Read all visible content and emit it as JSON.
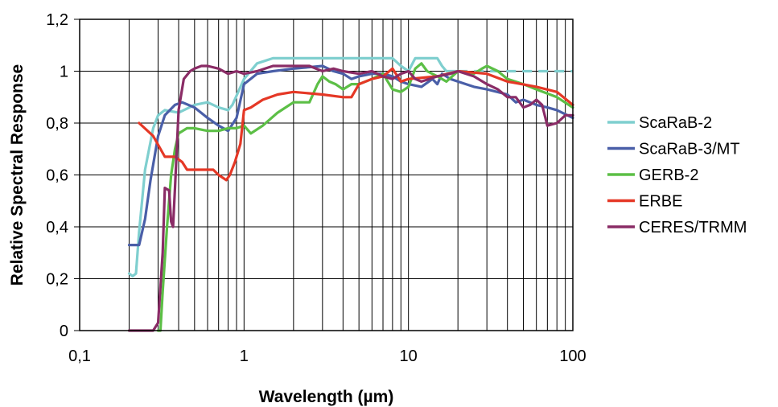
{
  "chart_data": {
    "type": "line",
    "title": "",
    "xlabel": "Wavelength (µm)",
    "ylabel": "Relative Spectral Response",
    "x_scale": "log",
    "xlim": [
      0.1,
      100
    ],
    "ylim": [
      0,
      1.2
    ],
    "x_ticks": [
      0.1,
      1,
      10,
      100
    ],
    "x_tick_labels": [
      "0,1",
      "1",
      "10",
      "100"
    ],
    "y_ticks": [
      0,
      0.2,
      0.4,
      0.6,
      0.8,
      1.0,
      1.2
    ],
    "y_tick_labels": [
      "0",
      "0,2",
      "0,4",
      "0,6",
      "0,8",
      "1",
      "1,2"
    ],
    "grid": {
      "major_y": true,
      "minor_x": true
    },
    "legend_position": "right",
    "series": [
      {
        "name": "ScaRaB-2",
        "color": "#7fcfcf",
        "dash_from_x": 20,
        "points": [
          [
            0.2,
            0.22
          ],
          [
            0.21,
            0.21
          ],
          [
            0.22,
            0.22
          ],
          [
            0.23,
            0.38
          ],
          [
            0.25,
            0.62
          ],
          [
            0.28,
            0.78
          ],
          [
            0.3,
            0.83
          ],
          [
            0.33,
            0.85
          ],
          [
            0.4,
            0.84
          ],
          [
            0.5,
            0.87
          ],
          [
            0.6,
            0.88
          ],
          [
            0.7,
            0.86
          ],
          [
            0.8,
            0.85
          ],
          [
            0.85,
            0.87
          ],
          [
            1.0,
            0.97
          ],
          [
            1.2,
            1.03
          ],
          [
            1.5,
            1.05
          ],
          [
            3,
            1.05
          ],
          [
            6,
            1.05
          ],
          [
            8,
            1.05
          ],
          [
            9,
            1.02
          ],
          [
            10,
            1.0
          ],
          [
            11,
            1.05
          ],
          [
            13,
            1.05
          ],
          [
            15,
            1.05
          ],
          [
            16,
            1.02
          ],
          [
            17,
            1.0
          ],
          [
            20,
            1.0
          ],
          [
            40,
            1.0
          ],
          [
            100,
            1.0
          ]
        ]
      },
      {
        "name": "ScaRaB-3/MT",
        "color": "#4a5fa8",
        "points": [
          [
            0.2,
            0.33
          ],
          [
            0.22,
            0.33
          ],
          [
            0.23,
            0.33
          ],
          [
            0.25,
            0.43
          ],
          [
            0.27,
            0.58
          ],
          [
            0.3,
            0.75
          ],
          [
            0.33,
            0.83
          ],
          [
            0.38,
            0.87
          ],
          [
            0.42,
            0.88
          ],
          [
            0.5,
            0.86
          ],
          [
            0.6,
            0.82
          ],
          [
            0.7,
            0.79
          ],
          [
            0.8,
            0.77
          ],
          [
            0.9,
            0.82
          ],
          [
            1.0,
            0.95
          ],
          [
            1.2,
            0.99
          ],
          [
            1.5,
            1.0
          ],
          [
            2,
            1.01
          ],
          [
            3,
            1.02
          ],
          [
            3.5,
            1.0
          ],
          [
            4,
            0.99
          ],
          [
            4.5,
            0.97
          ],
          [
            5,
            0.98
          ],
          [
            6,
            0.99
          ],
          [
            7,
            0.99
          ],
          [
            8,
            0.98
          ],
          [
            9,
            0.96
          ],
          [
            10,
            0.95
          ],
          [
            12,
            0.94
          ],
          [
            14,
            0.97
          ],
          [
            15,
            0.95
          ],
          [
            16,
            0.99
          ],
          [
            18,
            0.97
          ],
          [
            20,
            0.96
          ],
          [
            25,
            0.94
          ],
          [
            30,
            0.93
          ],
          [
            40,
            0.91
          ],
          [
            45,
            0.88
          ],
          [
            50,
            0.89
          ],
          [
            60,
            0.87
          ],
          [
            70,
            0.86
          ],
          [
            80,
            0.85
          ],
          [
            100,
            0.82
          ]
        ]
      },
      {
        "name": "GERB-2",
        "color": "#5cbf46",
        "points": [
          [
            0.3,
            0.0
          ],
          [
            0.31,
            0.0
          ],
          [
            0.32,
            0.15
          ],
          [
            0.34,
            0.4
          ],
          [
            0.36,
            0.6
          ],
          [
            0.38,
            0.7
          ],
          [
            0.4,
            0.76
          ],
          [
            0.45,
            0.78
          ],
          [
            0.5,
            0.78
          ],
          [
            0.6,
            0.77
          ],
          [
            0.7,
            0.77
          ],
          [
            0.8,
            0.78
          ],
          [
            0.9,
            0.78
          ],
          [
            1.0,
            0.79
          ],
          [
            1.1,
            0.76
          ],
          [
            1.3,
            0.79
          ],
          [
            1.6,
            0.84
          ],
          [
            2,
            0.88
          ],
          [
            2.2,
            0.88
          ],
          [
            2.5,
            0.88
          ],
          [
            2.8,
            0.95
          ],
          [
            3,
            0.98
          ],
          [
            3.3,
            0.96
          ],
          [
            3.6,
            0.95
          ],
          [
            4,
            0.93
          ],
          [
            4.5,
            0.95
          ],
          [
            5,
            0.95
          ],
          [
            6,
            0.97
          ],
          [
            7,
            0.99
          ],
          [
            8,
            0.93
          ],
          [
            9,
            0.92
          ],
          [
            10,
            0.94
          ],
          [
            11,
            1.01
          ],
          [
            12,
            1.03
          ],
          [
            13,
            1.0
          ],
          [
            15,
            0.98
          ],
          [
            17,
            0.96
          ],
          [
            20,
            1.0
          ],
          [
            25,
            0.99
          ],
          [
            28,
            1.01
          ],
          [
            30,
            1.02
          ],
          [
            35,
            1.0
          ],
          [
            40,
            0.97
          ],
          [
            50,
            0.95
          ],
          [
            60,
            0.93
          ],
          [
            80,
            0.9
          ],
          [
            100,
            0.86
          ]
        ]
      },
      {
        "name": "ERBE",
        "color": "#e53826",
        "points": [
          [
            0.23,
            0.8
          ],
          [
            0.28,
            0.75
          ],
          [
            0.33,
            0.67
          ],
          [
            0.38,
            0.67
          ],
          [
            0.42,
            0.65
          ],
          [
            0.45,
            0.62
          ],
          [
            0.55,
            0.62
          ],
          [
            0.65,
            0.62
          ],
          [
            0.7,
            0.6
          ],
          [
            0.78,
            0.58
          ],
          [
            0.82,
            0.6
          ],
          [
            0.88,
            0.65
          ],
          [
            0.95,
            0.72
          ],
          [
            1.0,
            0.85
          ],
          [
            1.1,
            0.86
          ],
          [
            1.3,
            0.89
          ],
          [
            1.6,
            0.91
          ],
          [
            2,
            0.92
          ],
          [
            3,
            0.91
          ],
          [
            4,
            0.9
          ],
          [
            4.5,
            0.9
          ],
          [
            5,
            0.95
          ],
          [
            6,
            0.97
          ],
          [
            7,
            0.98
          ],
          [
            8,
            1.01
          ],
          [
            9,
            0.96
          ],
          [
            10,
            0.97
          ],
          [
            15,
            0.98
          ],
          [
            20,
            1.0
          ],
          [
            30,
            0.99
          ],
          [
            40,
            0.96
          ],
          [
            60,
            0.94
          ],
          [
            80,
            0.92
          ],
          [
            100,
            0.87
          ]
        ]
      },
      {
        "name": "CERES/TRMM",
        "color": "#8a2c66",
        "points": [
          [
            0.2,
            0.0
          ],
          [
            0.25,
            0.0
          ],
          [
            0.28,
            0.0
          ],
          [
            0.3,
            0.03
          ],
          [
            0.32,
            0.3
          ],
          [
            0.33,
            0.55
          ],
          [
            0.35,
            0.54
          ],
          [
            0.36,
            0.42
          ],
          [
            0.37,
            0.4
          ],
          [
            0.38,
            0.55
          ],
          [
            0.4,
            0.85
          ],
          [
            0.43,
            0.97
          ],
          [
            0.47,
            1.0
          ],
          [
            0.5,
            1.01
          ],
          [
            0.55,
            1.02
          ],
          [
            0.6,
            1.02
          ],
          [
            0.7,
            1.01
          ],
          [
            0.8,
            0.99
          ],
          [
            0.9,
            1.0
          ],
          [
            1.0,
            0.99
          ],
          [
            1.2,
            1.0
          ],
          [
            1.5,
            1.02
          ],
          [
            2,
            1.02
          ],
          [
            2.5,
            1.02
          ],
          [
            3,
            1.0
          ],
          [
            3.5,
            1.01
          ],
          [
            4,
            1.0
          ],
          [
            5,
            0.99
          ],
          [
            6,
            1.0
          ],
          [
            7,
            0.98
          ],
          [
            8,
            0.97
          ],
          [
            9,
            0.99
          ],
          [
            10,
            1.0
          ],
          [
            11,
            0.97
          ],
          [
            12,
            0.96
          ],
          [
            15,
            0.98
          ],
          [
            18,
            0.99
          ],
          [
            20,
            1.0
          ],
          [
            25,
            0.98
          ],
          [
            30,
            0.95
          ],
          [
            35,
            0.93
          ],
          [
            40,
            0.9
          ],
          [
            45,
            0.9
          ],
          [
            50,
            0.86
          ],
          [
            55,
            0.87
          ],
          [
            60,
            0.89
          ],
          [
            65,
            0.87
          ],
          [
            70,
            0.79
          ],
          [
            80,
            0.8
          ],
          [
            90,
            0.83
          ],
          [
            100,
            0.83
          ]
        ]
      }
    ]
  }
}
